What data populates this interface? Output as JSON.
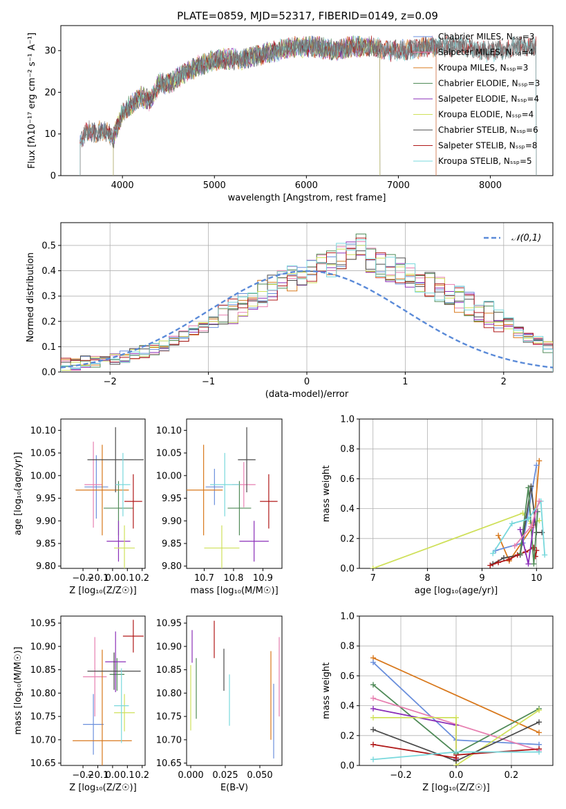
{
  "figure": {
    "title": "PLATE=0859, MJD=52317, FIBERID=0149, z=0.09"
  },
  "colors": {
    "Chabrier MILES": "#6a8fdc",
    "Salpeter MILES": "#e77fb0",
    "Kroupa MILES": "#d8781c",
    "Chabrier ELODIE": "#4f8a57",
    "Salpeter ELODIE": "#8a2eb8",
    "Kroupa ELODIE": "#cfe05a",
    "Chabrier STELIB": "#4a4a4a",
    "Salpeter STELIB": "#b01818",
    "Kroupa STELIB": "#78d8dc"
  },
  "chart_data": [
    {
      "id": "spectrum",
      "type": "line",
      "xlabel": "wavelength [Angstrom, rest frame]",
      "ylabel": "Flux [fλ10⁻¹⁷ erg cm⁻² s⁻¹ A⁻¹]",
      "xlim": [
        3330,
        8680
      ],
      "ylim": [
        0,
        36
      ],
      "xticks": [
        4000,
        5000,
        6000,
        7000,
        8000
      ],
      "yticks": [
        0,
        10,
        20,
        30
      ],
      "grid": false,
      "legend_position": "top-right",
      "legend": [
        "Chabrier MILES, N_SSP=3",
        "Salpeter MILES, N_SSP=4",
        "Kroupa MILES, N_SSP=3",
        "Chabrier ELODIE, N_SSP=3",
        "Salpeter ELODIE, N_SSP=4",
        "Kroupa ELODIE, N_SSP=4",
        "Chabrier STELIB, N_SSP=6",
        "Salpeter STELIB, N_SSP=8",
        "Kroupa STELIB, N_SSP=5"
      ],
      "data_envelope": {
        "x": [
          3550,
          3650,
          3700,
          3800,
          3900,
          4000,
          4100,
          4200,
          4300,
          4400,
          4500,
          4700,
          4900,
          5100,
          5300,
          5500,
          5700,
          5900,
          6100,
          6300,
          6500,
          6700,
          6900,
          7100,
          7300,
          7500,
          7700,
          7900,
          8100,
          8300,
          8500
        ],
        "y": [
          9,
          11,
          10,
          11,
          9,
          15,
          17,
          19,
          18,
          22,
          22,
          25,
          27,
          28,
          28,
          29,
          30,
          31,
          31,
          30,
          31,
          31,
          30,
          30,
          31,
          31,
          31,
          30,
          30,
          31,
          31
        ]
      },
      "model_ranges": [
        {
          "series": "Chabrier MILES",
          "xmin": 3540,
          "xmax": 7410
        },
        {
          "series": "Salpeter MILES",
          "xmin": 3540,
          "xmax": 7410
        },
        {
          "series": "Kroupa MILES",
          "xmin": 3540,
          "xmax": 7410
        },
        {
          "series": "Chabrier ELODIE",
          "xmin": 3900,
          "xmax": 6800
        },
        {
          "series": "Salpeter ELODIE",
          "xmin": 3900,
          "xmax": 6800
        },
        {
          "series": "Kroupa ELODIE",
          "xmin": 3900,
          "xmax": 6800
        },
        {
          "series": "Chabrier STELIB",
          "xmin": 3540,
          "xmax": 8500
        },
        {
          "series": "Salpeter STELIB",
          "xmin": 3540,
          "xmax": 8500
        },
        {
          "series": "Kroupa STELIB",
          "xmin": 3540,
          "xmax": 8500
        }
      ]
    },
    {
      "id": "residuals",
      "type": "histogram",
      "xlabel": "(data-model)/error",
      "ylabel": "Normed distribution",
      "xlim": [
        -2.5,
        2.5
      ],
      "ylim": [
        0,
        0.59
      ],
      "xticks": [
        -2,
        -1,
        0,
        1,
        2
      ],
      "yticks": [
        0.0,
        0.1,
        0.2,
        0.3,
        0.4,
        0.5
      ],
      "grid": true,
      "legend": [
        "𝒩(0,1)"
      ],
      "legend_position": "top-right",
      "bin_edges_start": -2.5,
      "bin_width": 0.1,
      "base_heights": [
        0.03,
        0.03,
        0.04,
        0.04,
        0.04,
        0.05,
        0.06,
        0.07,
        0.08,
        0.09,
        0.1,
        0.12,
        0.14,
        0.16,
        0.18,
        0.2,
        0.22,
        0.24,
        0.27,
        0.29,
        0.31,
        0.33,
        0.35,
        0.37,
        0.38,
        0.4,
        0.42,
        0.43,
        0.46,
        0.48,
        0.5,
        0.44,
        0.42,
        0.41,
        0.4,
        0.39,
        0.37,
        0.35,
        0.33,
        0.31,
        0.29,
        0.27,
        0.25,
        0.23,
        0.21,
        0.19,
        0.16,
        0.14,
        0.12,
        0.1
      ],
      "jitter": 0.025
    },
    {
      "id": "age-vs-z",
      "type": "errorbar",
      "xlabel": "Z [log₁₀(Z/Z☉)]",
      "ylabel": "age  [log₁₀(age/yr)]",
      "xlim": [
        -0.35,
        0.22
      ],
      "ylim": [
        9.795,
        10.125
      ],
      "xticks": [
        -0.2,
        -0.1,
        0.0,
        0.1,
        0.2
      ],
      "yticks": [
        9.8,
        9.85,
        9.9,
        9.95,
        10.0,
        10.05,
        10.1
      ],
      "points": [
        {
          "series": "Chabrier MILES",
          "x": -0.11,
          "xerr": 0.08,
          "y": 9.975,
          "yerr": 0.07
        },
        {
          "series": "Salpeter MILES",
          "x": -0.13,
          "xerr": 0.06,
          "y": 9.98,
          "yerr": 0.095
        },
        {
          "series": "Kroupa MILES",
          "x": -0.07,
          "xerr": 0.18,
          "y": 9.968,
          "yerr": 0.1
        },
        {
          "series": "Chabrier ELODIE",
          "x": 0.04,
          "xerr": 0.1,
          "y": 9.928,
          "yerr": 0.06
        },
        {
          "series": "Salpeter ELODIE",
          "x": 0.04,
          "xerr": 0.08,
          "y": 9.855,
          "yerr": 0.045
        },
        {
          "series": "Kroupa ELODIE",
          "x": 0.08,
          "xerr": 0.07,
          "y": 9.84,
          "yerr": 0.05
        },
        {
          "series": "Chabrier STELIB",
          "x": 0.02,
          "xerr": 0.19,
          "y": 10.035,
          "yerr": 0.072
        },
        {
          "series": "Salpeter STELIB",
          "x": 0.14,
          "xerr": 0.06,
          "y": 9.943,
          "yerr": 0.06
        },
        {
          "series": "Kroupa STELIB",
          "x": 0.07,
          "xerr": 0.05,
          "y": 9.98,
          "yerr": 0.07
        }
      ]
    },
    {
      "id": "age-vs-mass",
      "type": "errorbar",
      "xlabel": "mass [log₁₀(M/M☉)]",
      "ylabel": "",
      "xlim": [
        10.64,
        10.965
      ],
      "ylim": [
        9.795,
        10.125
      ],
      "xticks": [
        10.7,
        10.8,
        10.9
      ],
      "yticks": [
        9.8,
        9.85,
        9.9,
        9.95,
        10.0,
        10.05,
        10.1
      ],
      "points": [
        {
          "series": "Chabrier MILES",
          "x": 10.735,
          "xerr": 0.03,
          "y": 9.975,
          "yerr": 0.04
        },
        {
          "series": "Salpeter MILES",
          "x": 10.835,
          "xerr": 0.04,
          "y": 9.98,
          "yerr": 0.05
        },
        {
          "series": "Kroupa MILES",
          "x": 10.698,
          "xerr": 0.065,
          "y": 9.968,
          "yerr": 0.1
        },
        {
          "series": "Chabrier ELODIE",
          "x": 10.82,
          "xerr": 0.04,
          "y": 9.928,
          "yerr": 0.06
        },
        {
          "series": "Salpeter ELODIE",
          "x": 10.87,
          "xerr": 0.05,
          "y": 9.855,
          "yerr": 0.045
        },
        {
          "series": "Kroupa ELODIE",
          "x": 10.76,
          "xerr": 0.06,
          "y": 9.84,
          "yerr": 0.05
        },
        {
          "series": "Chabrier STELIB",
          "x": 10.845,
          "xerr": 0.03,
          "y": 10.035,
          "yerr": 0.072
        },
        {
          "series": "Salpeter STELIB",
          "x": 10.92,
          "xerr": 0.03,
          "y": 9.943,
          "yerr": 0.06
        },
        {
          "series": "Kroupa STELIB",
          "x": 10.77,
          "xerr": 0.05,
          "y": 9.98,
          "yerr": 0.07
        }
      ]
    },
    {
      "id": "weight-vs-age",
      "type": "line",
      "xlabel": "age  [log₁₀(age/yr)]",
      "ylabel": "mass weight",
      "xlim": [
        6.75,
        10.3
      ],
      "ylim": [
        0,
        1.0
      ],
      "xticks": [
        7,
        8,
        9,
        10
      ],
      "yticks": [
        0.0,
        0.2,
        0.4,
        0.6,
        0.8,
        1.0
      ],
      "grid": true,
      "series": [
        {
          "name": "Kroupa ELODIE",
          "x": [
            7.0,
            9.75,
            9.9,
            10.05
          ],
          "y": [
            0.0,
            0.37,
            0.3,
            0.32
          ]
        },
        {
          "name": "Kroupa MILES",
          "x": [
            9.3,
            9.5,
            9.95,
            10.05
          ],
          "y": [
            0.22,
            0.05,
            0.29,
            0.72
          ]
        },
        {
          "name": "Chabrier MILES",
          "x": [
            9.25,
            9.75,
            10.0
          ],
          "y": [
            0.12,
            0.17,
            0.69
          ]
        },
        {
          "name": "Chabrier STELIB",
          "x": [
            9.2,
            9.4,
            9.7,
            9.9,
            10.0,
            10.1
          ],
          "y": [
            0.03,
            0.07,
            0.09,
            0.55,
            0.24,
            0.24
          ]
        },
        {
          "name": "Salpeter STELIB",
          "x": [
            9.15,
            9.3,
            9.5,
            9.65,
            9.8,
            9.95,
            9.98,
            10.0
          ],
          "y": [
            0.02,
            0.04,
            0.06,
            0.09,
            0.11,
            0.14,
            0.08,
            0.12
          ]
        },
        {
          "name": "Chabrier ELODIE",
          "x": [
            9.7,
            9.85,
            9.95,
            10.02
          ],
          "y": [
            0.1,
            0.54,
            0.03,
            0.38
          ]
        },
        {
          "name": "Salpeter ELODIE",
          "x": [
            9.7,
            9.85,
            9.98
          ],
          "y": [
            0.26,
            0.03,
            0.38
          ]
        },
        {
          "name": "Kroupa STELIB",
          "x": [
            9.2,
            9.55,
            9.85,
            10.08,
            10.15
          ],
          "y": [
            0.1,
            0.3,
            0.33,
            0.45,
            0.09
          ]
        },
        {
          "name": "Salpeter MILES",
          "x": [
            9.6,
            9.9,
            10.05
          ],
          "y": [
            0.15,
            0.28,
            0.45
          ]
        }
      ]
    },
    {
      "id": "mass-vs-z",
      "type": "errorbar",
      "xlabel": "Z [log₁₀(Z/Z☉)]",
      "ylabel": "mass [log₁₀(M/M☉)]",
      "xlim": [
        -0.35,
        0.22
      ],
      "ylim": [
        10.645,
        10.965
      ],
      "xticks": [
        -0.2,
        -0.1,
        0.0,
        0.1,
        0.2
      ],
      "yticks": [
        10.65,
        10.7,
        10.75,
        10.8,
        10.85,
        10.9,
        10.95
      ],
      "points": [
        {
          "series": "Chabrier MILES",
          "x": -0.13,
          "xerr": 0.07,
          "y": 10.733,
          "yerr": 0.065
        },
        {
          "series": "Salpeter MILES",
          "x": -0.12,
          "xerr": 0.08,
          "y": 10.835,
          "yerr": 0.085
        },
        {
          "series": "Kroupa MILES",
          "x": -0.07,
          "xerr": 0.2,
          "y": 10.698,
          "yerr": 0.195
        },
        {
          "series": "Chabrier ELODIE",
          "x": 0.03,
          "xerr": 0.05,
          "y": 10.84,
          "yerr": 0.035
        },
        {
          "series": "Salpeter ELODIE",
          "x": 0.02,
          "xerr": 0.07,
          "y": 10.867,
          "yerr": 0.065
        },
        {
          "series": "Kroupa ELODIE",
          "x": 0.08,
          "xerr": 0.07,
          "y": 10.758,
          "yerr": 0.04
        },
        {
          "series": "Chabrier STELIB",
          "x": 0.01,
          "xerr": 0.18,
          "y": 10.847,
          "yerr": 0.04
        },
        {
          "series": "Salpeter STELIB",
          "x": 0.14,
          "xerr": 0.07,
          "y": 10.922,
          "yerr": 0.035
        },
        {
          "series": "Kroupa STELIB",
          "x": 0.06,
          "xerr": 0.05,
          "y": 10.773,
          "yerr": 0.08
        }
      ]
    },
    {
      "id": "mass-vs-ebv",
      "type": "errorbar",
      "xlabel": "E(B-V)",
      "ylabel": "",
      "xlim": [
        -0.003,
        0.066
      ],
      "ylim": [
        10.645,
        10.965
      ],
      "xticks": [
        0.0,
        0.025,
        0.05
      ],
      "xtick_labels": [
        "0.000",
        "0.025",
        "0.050"
      ],
      "yticks": [
        10.65,
        10.7,
        10.75,
        10.8,
        10.85,
        10.9,
        10.95
      ],
      "points": [
        {
          "series": "Chabrier MILES",
          "x": 0.06,
          "y": 10.74,
          "yerr": 0.08
        },
        {
          "series": "Salpeter MILES",
          "x": 0.064,
          "y": 10.835,
          "yerr": 0.085
        },
        {
          "series": "Kroupa MILES",
          "x": 0.058,
          "y": 10.795,
          "yerr": 0.095
        },
        {
          "series": "Chabrier ELODIE",
          "x": 0.004,
          "y": 10.81,
          "yerr": 0.065
        },
        {
          "series": "Salpeter ELODIE",
          "x": 0.001,
          "y": 10.9,
          "yerr": 0.035
        },
        {
          "series": "Kroupa ELODIE",
          "x": 0.0,
          "y": 10.79,
          "yerr": 0.07
        },
        {
          "series": "Chabrier STELIB",
          "x": 0.024,
          "y": 10.85,
          "yerr": 0.045
        },
        {
          "series": "Salpeter STELIB",
          "x": 0.017,
          "y": 10.915,
          "yerr": 0.04
        },
        {
          "series": "Kroupa STELIB",
          "x": 0.028,
          "y": 10.785,
          "yerr": 0.055
        }
      ]
    },
    {
      "id": "weight-vs-z",
      "type": "line",
      "xlabel": "Z [log₁₀(Z/Z☉)]",
      "ylabel": "mass weight",
      "xlim": [
        -0.35,
        0.35
      ],
      "ylim": [
        0,
        1.0
      ],
      "xticks": [
        -0.2,
        0.0,
        0.2
      ],
      "yticks": [
        0.0,
        0.2,
        0.4,
        0.6,
        0.8,
        1.0
      ],
      "grid": true,
      "series": [
        {
          "name": "Kroupa MILES",
          "x": [
            -0.3,
            0.3
          ],
          "y": [
            0.72,
            0.22
          ]
        },
        {
          "name": "Chabrier MILES",
          "x": [
            -0.3,
            0.0,
            0.3
          ],
          "y": [
            0.69,
            0.17,
            0.14
          ]
        },
        {
          "name": "Chabrier ELODIE",
          "x": [
            -0.3,
            0.0,
            0.3
          ],
          "y": [
            0.54,
            0.08,
            0.38
          ]
        },
        {
          "name": "Salpeter MILES",
          "x": [
            -0.3,
            0.3
          ],
          "y": [
            0.45,
            0.1
          ]
        },
        {
          "name": "Salpeter ELODIE",
          "x": [
            -0.3,
            0.0,
            0.0
          ],
          "y": [
            0.38,
            0.27,
            0.04
          ]
        },
        {
          "name": "Kroupa ELODIE",
          "x": [
            -0.3,
            0.0,
            0.0,
            0.3
          ],
          "y": [
            0.32,
            0.32,
            0.0,
            0.37
          ]
        },
        {
          "name": "Chabrier STELIB",
          "x": [
            -0.3,
            0.0,
            0.3
          ],
          "y": [
            0.24,
            0.03,
            0.29
          ]
        },
        {
          "name": "Salpeter STELIB",
          "x": [
            -0.3,
            0.0,
            0.0,
            0.3
          ],
          "y": [
            0.14,
            0.05,
            0.07,
            0.11
          ]
        },
        {
          "name": "Kroupa STELIB",
          "x": [
            -0.3,
            0.0,
            0.3
          ],
          "y": [
            0.04,
            0.09,
            0.09
          ]
        }
      ]
    }
  ]
}
